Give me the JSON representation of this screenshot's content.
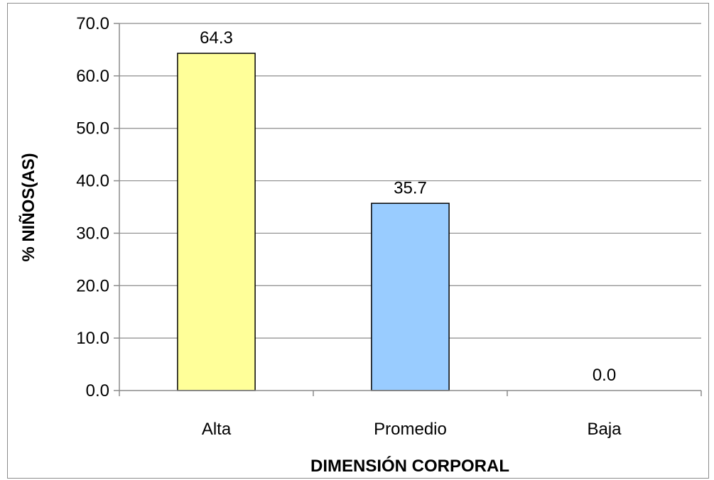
{
  "chart_data": {
    "type": "bar",
    "title": "",
    "xlabel": "DIMENSIÓN CORPORAL",
    "ylabel": "% NIÑOS(AS)",
    "categories": [
      "Alta",
      "Promedio",
      "Baja"
    ],
    "values": [
      64.3,
      35.7,
      0.0
    ],
    "value_labels": [
      "64.3",
      "35.7",
      "0.0"
    ],
    "bar_colors": [
      "#ffff99",
      "#99ccff",
      "#ffffff"
    ],
    "ylim": [
      0,
      70
    ],
    "ytick_values": [
      0,
      10,
      20,
      30,
      40,
      50,
      60,
      70
    ],
    "yticks": [
      "0.0",
      "10.0",
      "20.0",
      "30.0",
      "40.0",
      "50.0",
      "60.0",
      "70.0"
    ],
    "grid": true,
    "legend": "none"
  }
}
